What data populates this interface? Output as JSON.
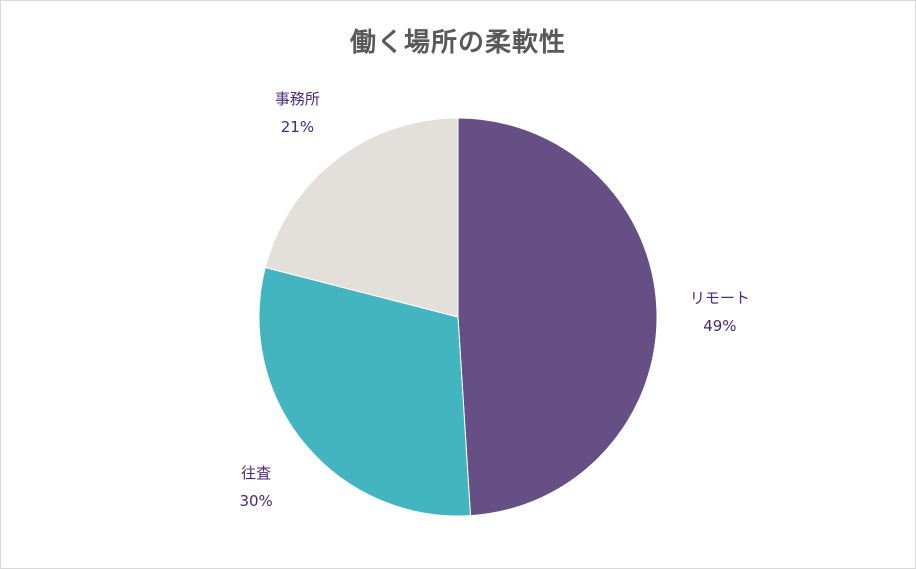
{
  "chart_data": {
    "type": "pie",
    "title": "働く場所の柔軟性",
    "categories": [
      "リモート",
      "往査",
      "事務所"
    ],
    "values": [
      49,
      30,
      21
    ],
    "value_labels": [
      "49%",
      "30%",
      "21%"
    ],
    "colors": [
      "#654f85",
      "#43b5c1",
      "#e3dfdb"
    ],
    "legend": "none",
    "data_labels": "outside-end"
  }
}
